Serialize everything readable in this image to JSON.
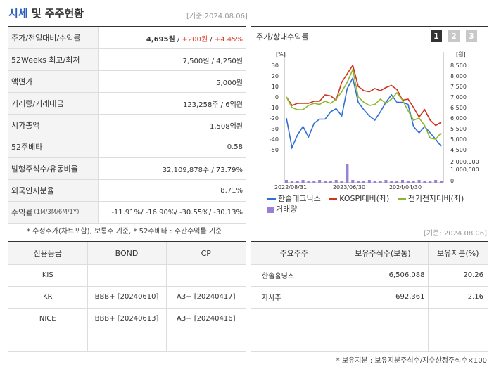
{
  "header": {
    "title_a": "시세",
    "title_b": "및 주주현황",
    "basis": "[기준:2024.08.06]"
  },
  "market": [
    {
      "label": "주가/전일대비/수익률",
      "price": "4,695원",
      "change": "+200원",
      "rate": "+4.45%"
    },
    {
      "label": "52Weeks 최고/최저",
      "value": "7,500원 / 4,250원"
    },
    {
      "label": "액면가",
      "value": "5,000원"
    },
    {
      "label": "거래량/거래대금",
      "value": "123,258주 / 6억원"
    },
    {
      "label": "시가총액",
      "value": "1,508억원"
    },
    {
      "label": "52주베타",
      "value": "0.58"
    },
    {
      "label": "발행주식수/유동비율",
      "value": "32,109,878주 / 73.79%"
    },
    {
      "label": "외국인지분율",
      "value": "8.71%"
    },
    {
      "label": "수익률",
      "sub": "(1M/3M/6M/1Y)",
      "r1": "-11.91%",
      "r2": "-16.90%",
      "r3": "-30.55%",
      "r4": "-30.13%"
    }
  ],
  "note1": "* 수정주가(차트포함), 보통주 기준, * 52주베타 : 주간수익률 기준",
  "chart": {
    "title": "주가/상대수익률",
    "pages": [
      "1",
      "2",
      "3"
    ],
    "left_unit": "[%]",
    "right_unit": "[원]",
    "left_ticks": [
      "30",
      "20",
      "10",
      "0",
      "-10",
      "-20",
      "-30",
      "-40",
      "-50"
    ],
    "right_ticks": [
      "8,500",
      "8,000",
      "7,500",
      "7,000",
      "6,500",
      "6,000",
      "5,500",
      "5,000",
      "4,500"
    ],
    "vol_ticks": [
      "2,000,000",
      "1,000,000",
      "0"
    ],
    "x_ticks": [
      "2022/08/31",
      "2023/06/30",
      "2024/04/30"
    ],
    "legend": [
      "한솔테크닉스",
      "KOSPI대비(좌)",
      "전기전자대비(좌)",
      "거래량"
    ],
    "colors": {
      "stock": "#2f6fd6",
      "kospi": "#d0331f",
      "sector": "#8db82b",
      "volume": "#9a7fd8"
    }
  },
  "chart_data": {
    "type": "line",
    "series": [
      {
        "name": "한솔테크닉스",
        "values": [
          -20,
          -48,
          -36,
          -28,
          -38,
          -25,
          -21,
          -21,
          -14,
          -11,
          -18,
          8,
          18,
          -5,
          -12,
          -18,
          -22,
          -14,
          -5,
          2,
          -5,
          -5,
          -7,
          -28,
          -34,
          -28,
          -34,
          -40,
          -47
        ]
      },
      {
        "name": "KOSPI대비(좌)",
        "values": [
          0,
          -8,
          -6,
          -6,
          -6,
          -4,
          -4,
          2,
          1,
          -3,
          14,
          22,
          30,
          10,
          6,
          5,
          8,
          6,
          9,
          11,
          7,
          -3,
          -2,
          -10,
          -19,
          -12,
          -22,
          -27,
          -24
        ]
      },
      {
        "name": "전기전자대비(좌)",
        "values": [
          0,
          -10,
          -12,
          -12,
          -8,
          -6,
          -7,
          -4,
          -6,
          -2,
          5,
          14,
          26,
          0,
          -5,
          -8,
          -7,
          -2,
          -6,
          -2,
          4,
          -3,
          -13,
          -22,
          -20,
          -27,
          -39,
          -40,
          -34
        ]
      }
    ],
    "volume_peak_index": 11
  },
  "credit": {
    "headers": [
      "신용등급",
      "BOND",
      "CP"
    ],
    "rows": [
      [
        "KIS",
        "",
        ""
      ],
      [
        "KR",
        "BBB+ [20240610]",
        "A3+ [20240417]"
      ],
      [
        "NICE",
        "BBB+ [20240613]",
        "A3+ [20240416]"
      ],
      [
        "",
        "",
        ""
      ]
    ]
  },
  "basis2": "[기준: 2024.08.06]",
  "holders": {
    "headers": [
      "주요주주",
      "보유주식수(보통)",
      "보유지분(%)"
    ],
    "rows": [
      [
        "한솔홀딩스",
        "6,506,088",
        "20.26"
      ],
      [
        "자사주",
        "692,361",
        "2.16"
      ],
      [
        "",
        "",
        ""
      ],
      [
        "",
        "",
        ""
      ]
    ]
  },
  "note2": "* 보유지분 : 보유지분주식수/지수산정주식수×100"
}
